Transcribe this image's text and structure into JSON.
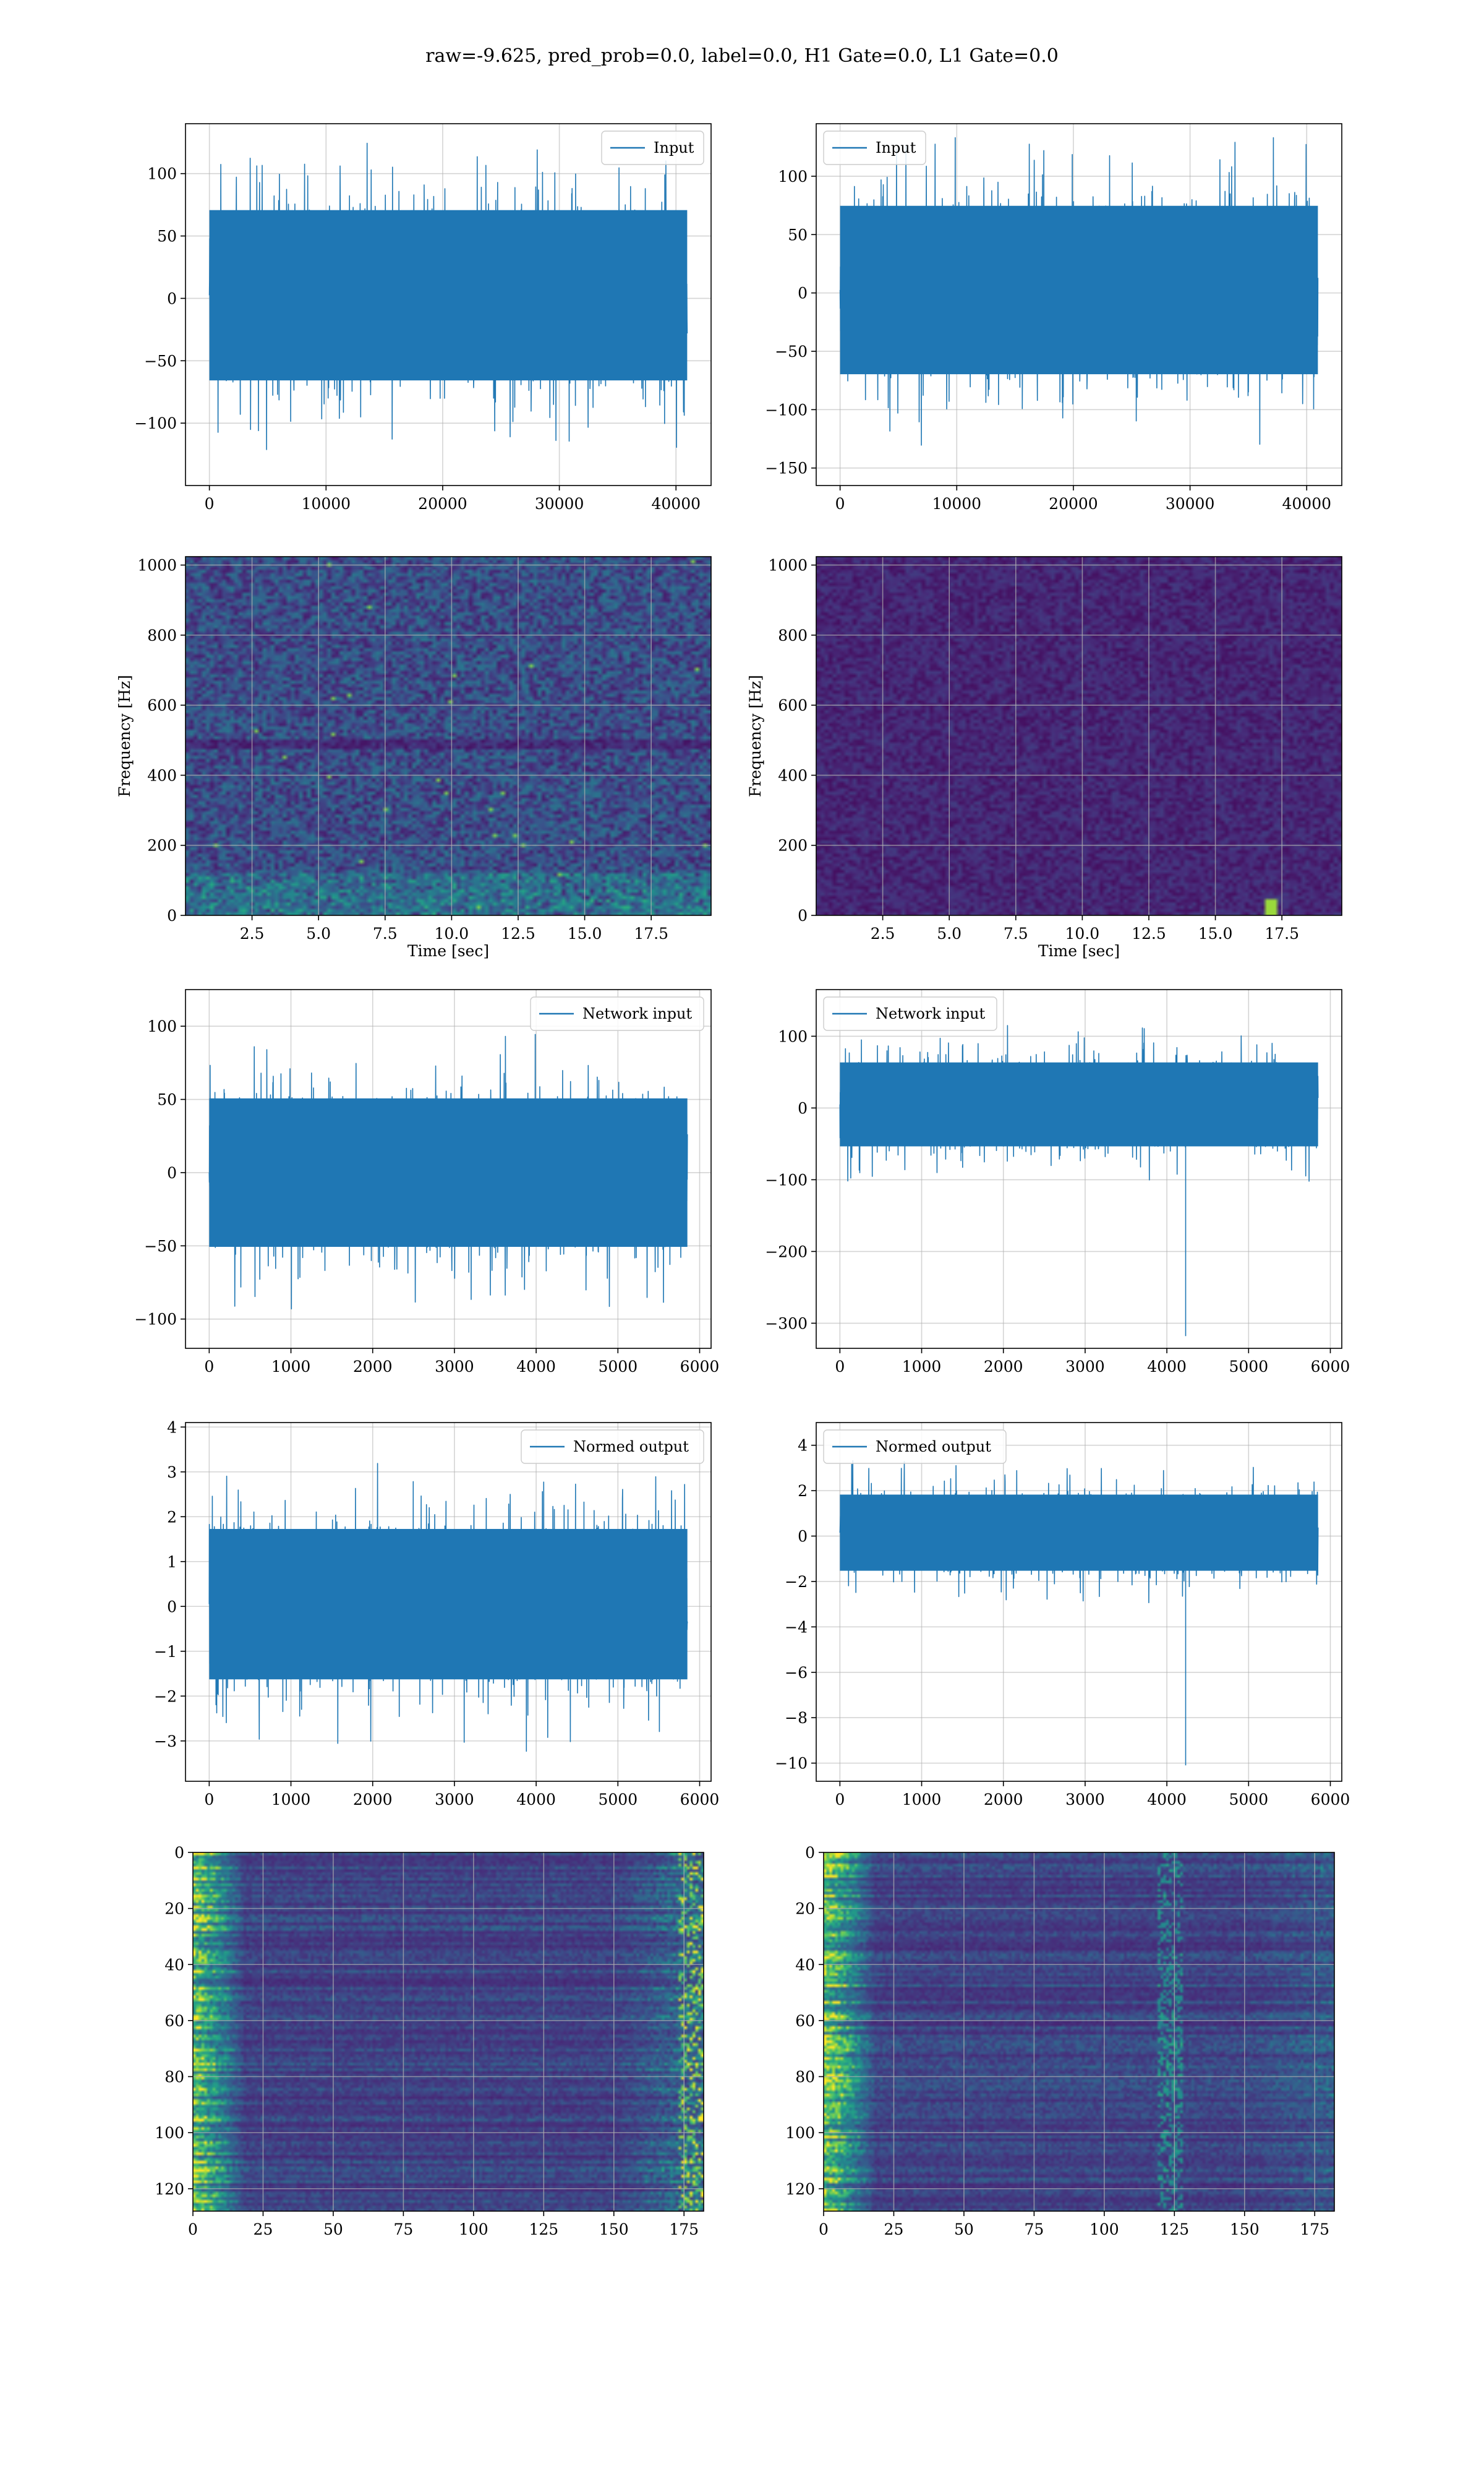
{
  "figure": {
    "suptitle": "raw=-9.625, pred_prob=0.0, label=0.0, H1 Gate=0.0, L1 Gate=0.0",
    "colors": {
      "series": "#1f77b4",
      "grid": "#b0b0b0",
      "viridis_dark": "#440154"
    }
  },
  "chart_data": [
    {
      "id": "h1-input",
      "type": "line",
      "legend": "Input",
      "legend_loc": "upper right",
      "n_samples": 40960,
      "x_range": [
        0,
        40960
      ],
      "xlim": [
        -2048,
        43008
      ],
      "ylim": [
        -150,
        140
      ],
      "envelope": [
        -85,
        90
      ],
      "extremes": [
        -140,
        133
      ],
      "grid": true,
      "xticks": [
        0,
        10000,
        20000,
        30000,
        40000
      ],
      "xtick_labels": [
        "0",
        "10000",
        "20000",
        "30000",
        "40000"
      ],
      "yticks": [
        100,
        50,
        0,
        -50,
        -100
      ],
      "ytick_labels": [
        "100",
        "50",
        "0",
        "−50",
        "−100"
      ],
      "xlabel": "",
      "ylabel": ""
    },
    {
      "id": "l1-input",
      "type": "line",
      "legend": "Input",
      "legend_loc": "upper left",
      "n_samples": 40960,
      "x_range": [
        0,
        40960
      ],
      "xlim": [
        -2048,
        43008
      ],
      "ylim": [
        -165,
        145
      ],
      "envelope": [
        -90,
        95
      ],
      "extremes": [
        -150,
        133
      ],
      "grid": true,
      "xticks": [
        0,
        10000,
        20000,
        30000,
        40000
      ],
      "xtick_labels": [
        "0",
        "10000",
        "20000",
        "30000",
        "40000"
      ],
      "yticks": [
        100,
        50,
        0,
        -50,
        -100,
        -150
      ],
      "ytick_labels": [
        "100",
        "50",
        "0",
        "−50",
        "−100",
        "−150"
      ],
      "xlabel": "",
      "ylabel": ""
    },
    {
      "id": "h1-spectrogram",
      "type": "heatmap",
      "colormap": "viridis",
      "xlim": [
        0,
        19.75
      ],
      "ylim": [
        0,
        1024
      ],
      "grid": true,
      "xticks": [
        2.5,
        5.0,
        7.5,
        10.0,
        12.5,
        15.0,
        17.5
      ],
      "xtick_labels": [
        "2.5",
        "5.0",
        "7.5",
        "10.0",
        "12.5",
        "15.0",
        "17.5"
      ],
      "yticks": [
        0,
        200,
        400,
        600,
        800,
        1000
      ],
      "ytick_labels": [
        "0",
        "200",
        "400",
        "600",
        "800",
        "1000"
      ],
      "xlabel": "Time [sec]",
      "ylabel": "Frequency [Hz]"
    },
    {
      "id": "l1-spectrogram",
      "type": "heatmap",
      "colormap": "viridis",
      "xlim": [
        0,
        19.75
      ],
      "ylim": [
        0,
        1024
      ],
      "grid": true,
      "xticks": [
        2.5,
        5.0,
        7.5,
        10.0,
        12.5,
        15.0,
        17.5
      ],
      "xtick_labels": [
        "2.5",
        "5.0",
        "7.5",
        "10.0",
        "12.5",
        "15.0",
        "17.5"
      ],
      "yticks": [
        0,
        200,
        400,
        600,
        800,
        1000
      ],
      "ytick_labels": [
        "0",
        "200",
        "400",
        "600",
        "800",
        "1000"
      ],
      "xlabel": "Time [sec]",
      "ylabel": "Frequency [Hz]"
    },
    {
      "id": "h1-network-input",
      "type": "line",
      "legend": "Network input",
      "legend_loc": "upper right",
      "n_samples": 5850,
      "x_range": [
        0,
        5850
      ],
      "xlim": [
        -290,
        6140
      ],
      "ylim": [
        -120,
        125
      ],
      "envelope": [
        -65,
        65
      ],
      "extremes": [
        -110,
        113
      ],
      "grid": true,
      "xticks": [
        0,
        1000,
        2000,
        3000,
        4000,
        5000,
        6000
      ],
      "xtick_labels": [
        "0",
        "1000",
        "2000",
        "3000",
        "4000",
        "5000",
        "6000"
      ],
      "yticks": [
        100,
        50,
        0,
        -50,
        -100
      ],
      "ytick_labels": [
        "100",
        "50",
        "0",
        "−50",
        "−100"
      ],
      "xlabel": "",
      "ylabel": ""
    },
    {
      "id": "l1-network-input",
      "type": "line",
      "legend": "Network input",
      "legend_loc": "upper left",
      "n_samples": 5850,
      "x_range": [
        0,
        5850
      ],
      "xlim": [
        -290,
        6140
      ],
      "ylim": [
        -335,
        165
      ],
      "envelope": [
        -70,
        80
      ],
      "extremes": [
        -318,
        115
      ],
      "glitch": {
        "x": 4230,
        "y": -318
      },
      "grid": true,
      "xticks": [
        0,
        1000,
        2000,
        3000,
        4000,
        5000,
        6000
      ],
      "xtick_labels": [
        "0",
        "1000",
        "2000",
        "3000",
        "4000",
        "5000",
        "6000"
      ],
      "yticks": [
        100,
        0,
        -100,
        -200,
        -300
      ],
      "ytick_labels": [
        "100",
        "0",
        "−100",
        "−200",
        "−300"
      ],
      "xlabel": "",
      "ylabel": ""
    },
    {
      "id": "h1-normed-output",
      "type": "line",
      "legend": "Normed output",
      "legend_loc": "upper right",
      "n_samples": 5850,
      "x_range": [
        0,
        5850
      ],
      "xlim": [
        -290,
        6140
      ],
      "ylim": [
        -3.9,
        4.1
      ],
      "envelope": [
        -2.1,
        2.2
      ],
      "extremes": [
        -3.5,
        3.7
      ],
      "grid": true,
      "xticks": [
        0,
        1000,
        2000,
        3000,
        4000,
        5000,
        6000
      ],
      "xtick_labels": [
        "0",
        "1000",
        "2000",
        "3000",
        "4000",
        "5000",
        "6000"
      ],
      "yticks": [
        4,
        3,
        2,
        1,
        0,
        -1,
        -2,
        -3
      ],
      "ytick_labels": [
        "4",
        "3",
        "2",
        "1",
        "0",
        "−1",
        "−2",
        "−3"
      ],
      "xlabel": "",
      "ylabel": ""
    },
    {
      "id": "l1-normed-output",
      "type": "line",
      "legend": "Normed output",
      "legend_loc": "upper left",
      "n_samples": 5850,
      "x_range": [
        0,
        5850
      ],
      "xlim": [
        -290,
        6140
      ],
      "ylim": [
        -10.8,
        5.0
      ],
      "envelope": [
        -2.0,
        2.3
      ],
      "extremes": [
        -10.1,
        4.7
      ],
      "glitch": {
        "x": 4230,
        "y": -10.1
      },
      "grid": true,
      "xticks": [
        0,
        1000,
        2000,
        3000,
        4000,
        5000,
        6000
      ],
      "xtick_labels": [
        "0",
        "1000",
        "2000",
        "3000",
        "4000",
        "5000",
        "6000"
      ],
      "yticks": [
        4,
        2,
        0,
        -2,
        -4,
        -6,
        -8,
        -10
      ],
      "ytick_labels": [
        "4",
        "2",
        "0",
        "−2",
        "−4",
        "−6",
        "−8",
        "−10"
      ],
      "xlabel": "",
      "ylabel": ""
    },
    {
      "id": "h1-features",
      "type": "heatmap",
      "colormap": "viridis",
      "xlim": [
        0,
        182
      ],
      "ylim": [
        128,
        0
      ],
      "grid": true,
      "xticks": [
        0,
        25,
        50,
        75,
        100,
        125,
        150,
        175
      ],
      "xtick_labels": [
        "0",
        "25",
        "50",
        "75",
        "100",
        "125",
        "150",
        "175"
      ],
      "yticks": [
        0,
        20,
        40,
        60,
        80,
        100,
        120
      ],
      "ytick_labels": [
        "0",
        "20",
        "40",
        "60",
        "80",
        "100",
        "120"
      ],
      "xlabel": "",
      "ylabel": ""
    },
    {
      "id": "l1-features",
      "type": "heatmap",
      "colormap": "viridis",
      "xlim": [
        0,
        182
      ],
      "ylim": [
        128,
        0
      ],
      "grid": true,
      "xticks": [
        0,
        25,
        50,
        75,
        100,
        125,
        150,
        175
      ],
      "xtick_labels": [
        "0",
        "25",
        "50",
        "75",
        "100",
        "125",
        "150",
        "175"
      ],
      "yticks": [
        0,
        20,
        40,
        60,
        80,
        100,
        120
      ],
      "ytick_labels": [
        "0",
        "20",
        "40",
        "60",
        "80",
        "100",
        "120"
      ],
      "xlabel": "",
      "ylabel": ""
    }
  ]
}
